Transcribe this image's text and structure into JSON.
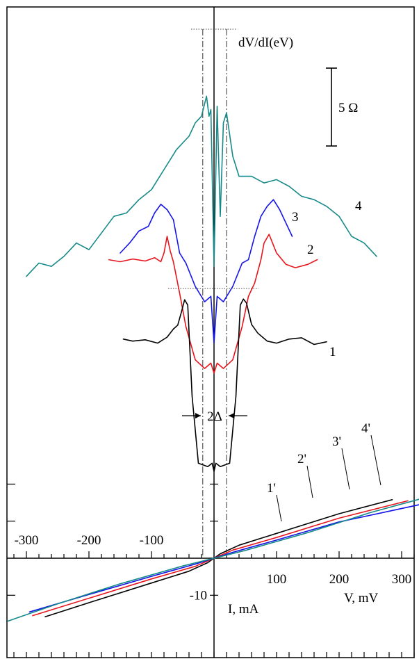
{
  "chart_data": {
    "type": "line",
    "title": "",
    "colors": {
      "1": "#000000",
      "2": "#e8141c",
      "3": "#1414e8",
      "4": "#168a88"
    },
    "dvdi_panel": {
      "ylabel": "dV/dI(eV)",
      "scale_bar_label": "5 Ω",
      "gap_label": "2Δ",
      "xlim": [
        -330,
        330
      ],
      "series": [
        {
          "name": "1",
          "x": [
            -145,
            -130,
            -110,
            -90,
            -75,
            -65,
            -58,
            -52,
            -47,
            -42,
            -35,
            -25,
            -10,
            -3,
            0,
            3,
            10,
            25,
            35,
            42,
            47,
            52,
            60,
            70,
            85,
            100,
            120,
            140,
            160,
            180
          ],
          "y": [
            -10.4,
            -10.7,
            -10.5,
            -11.0,
            -10.1,
            -8.9,
            -8.3,
            -6.3,
            -4.5,
            -5.3,
            -19.0,
            -29.0,
            -29.5,
            -29.0,
            -30.2,
            -29.0,
            -29.5,
            -29.0,
            -19.0,
            -5.3,
            -4.4,
            -5.0,
            -8.2,
            -9.5,
            -10.7,
            -11.0,
            -10.4,
            -10.2,
            -11.2,
            -10.8
          ]
        },
        {
          "name": "2",
          "x": [
            -168,
            -150,
            -130,
            -110,
            -95,
            -85,
            -80,
            -75,
            -70,
            -65,
            -55,
            -45,
            -30,
            -15,
            -5,
            0,
            5,
            15,
            30,
            45,
            55,
            65,
            75,
            80,
            88,
            100,
            115,
            130,
            150,
            165
          ],
          "y": [
            1.5,
            1.2,
            1.6,
            1.3,
            1.8,
            1.2,
            2.5,
            5.0,
            2.8,
            1.2,
            -3.5,
            -8.5,
            -13.5,
            -14.8,
            -14.0,
            -15.5,
            -14.0,
            -14.8,
            -13.5,
            -8.5,
            -4.0,
            -2.0,
            1.5,
            4.0,
            5.3,
            2.5,
            0.8,
            0.3,
            0.8,
            1.5
          ]
        },
        {
          "name": "3",
          "x": [
            -150,
            -135,
            -120,
            -105,
            -95,
            -85,
            -75,
            -65,
            -55,
            -45,
            -30,
            -15,
            -5,
            0,
            5,
            15,
            30,
            45,
            55,
            65,
            75,
            85,
            95,
            105,
            115,
            125
          ],
          "y": [
            2.5,
            4.0,
            5.8,
            6.5,
            8.5,
            9.8,
            9.0,
            7.5,
            2.5,
            1.0,
            -2.5,
            -4.8,
            -4.0,
            -11.0,
            -4.0,
            -4.8,
            -2.5,
            1.0,
            1.5,
            5.0,
            8.0,
            9.5,
            10.5,
            9.0,
            7.0,
            5.0
          ]
        },
        {
          "name": "4",
          "x": [
            -300,
            -280,
            -260,
            -240,
            -220,
            -200,
            -180,
            -160,
            -140,
            -120,
            -100,
            -80,
            -60,
            -40,
            -30,
            -20,
            -12,
            -8,
            -5,
            0,
            5,
            10,
            15,
            20,
            30,
            40,
            60,
            80,
            100,
            120,
            140,
            160,
            180,
            200,
            220,
            240,
            260
          ],
          "y": [
            -1.0,
            1.0,
            0.5,
            2.0,
            4.0,
            3.0,
            5.5,
            8.0,
            8.5,
            10.5,
            12.0,
            15.0,
            18.0,
            20.0,
            22.0,
            23.0,
            26.0,
            23.0,
            24.0,
            0.5,
            24.5,
            8.0,
            22.0,
            23.5,
            17.0,
            14.0,
            14.0,
            13.0,
            13.5,
            12.5,
            11.0,
            10.5,
            9.5,
            8.0,
            5.0,
            4.0,
            2.0
          ]
        }
      ]
    },
    "iv_panel": {
      "xlabel": "V, mV",
      "ylabel": "I, mA",
      "xlim": [
        -330,
        330
      ],
      "ylim": [
        -19,
        19
      ],
      "x_ticks": [
        -300,
        -200,
        -100,
        100,
        200,
        300
      ],
      "y_ticks": [
        -10
      ],
      "x_tick_labels": [
        "-300",
        "-200",
        "-100",
        "100",
        "200",
        "300"
      ],
      "y_tick_labels": [
        "-10"
      ],
      "series": [
        {
          "name": "1'",
          "x": [
            -270,
            -200,
            -100,
            -40,
            -10,
            0,
            10,
            40,
            100,
            200,
            285
          ],
          "y": [
            -15.8,
            -12.0,
            -6.7,
            -3.5,
            -1.2,
            0,
            1.2,
            3.5,
            6.7,
            12.0,
            15.8
          ]
        },
        {
          "name": "2'",
          "x": [
            -290,
            -200,
            -100,
            -30,
            0,
            30,
            100,
            200,
            310
          ],
          "y": [
            -15.5,
            -10.8,
            -5.6,
            -2.2,
            0,
            2.2,
            5.6,
            10.8,
            15.5
          ]
        },
        {
          "name": "3'",
          "x": [
            -295,
            -200,
            -100,
            -30,
            0,
            30,
            100,
            200,
            330
          ],
          "y": [
            -14.5,
            -9.8,
            -4.9,
            -1.6,
            0,
            1.6,
            4.9,
            9.8,
            14.5
          ]
        },
        {
          "name": "4'",
          "x": [
            -330,
            -250,
            -150,
            -50,
            0,
            50,
            150,
            250,
            330
          ],
          "y": [
            -17.0,
            -12.3,
            -6.9,
            -2.1,
            0,
            2.1,
            6.9,
            12.3,
            16.0
          ]
        }
      ]
    }
  }
}
